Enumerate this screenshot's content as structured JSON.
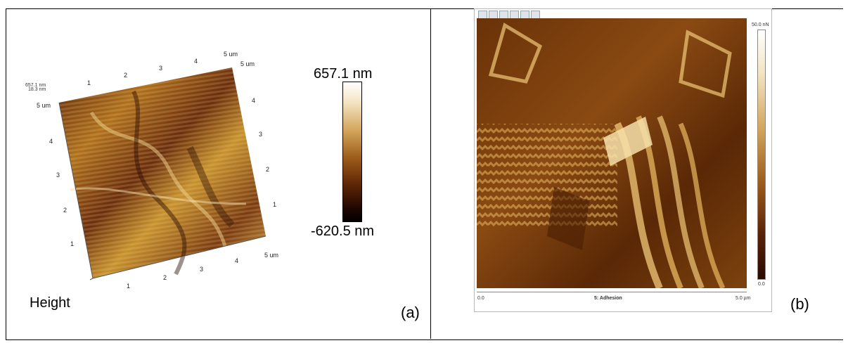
{
  "panel_a": {
    "label": "(a)",
    "caption": "Height",
    "colorbar_max": "657.1 nm",
    "colorbar_min": "-620.5 nm",
    "axis_unit_top": "5 um",
    "axis_unit_right_top": "5 um",
    "axis_unit_right_bottom": "5 um",
    "axis_unit_left": "5 um",
    "z_label_1": "657.1 nm",
    "z_label_2": "18.3 nm",
    "ticks_top": [
      "1",
      "2",
      "3",
      "4"
    ],
    "ticks_left": [
      "4",
      "3",
      "2",
      "1"
    ],
    "ticks_right": [
      "4",
      "3",
      "2",
      "1"
    ],
    "ticks_bottom": [
      "1",
      "2",
      "3",
      "4"
    ]
  },
  "panel_b": {
    "label": "(b)",
    "channel_label": "5: Adhesion",
    "x_min": "0.0",
    "x_max": "5.0 µm",
    "scale_max": "50.0 nN",
    "scale_min": "0.0"
  },
  "colors": {
    "afm_dark": "#3a1400",
    "afm_mid": "#8a4a0e",
    "afm_light": "#f0dcae"
  }
}
